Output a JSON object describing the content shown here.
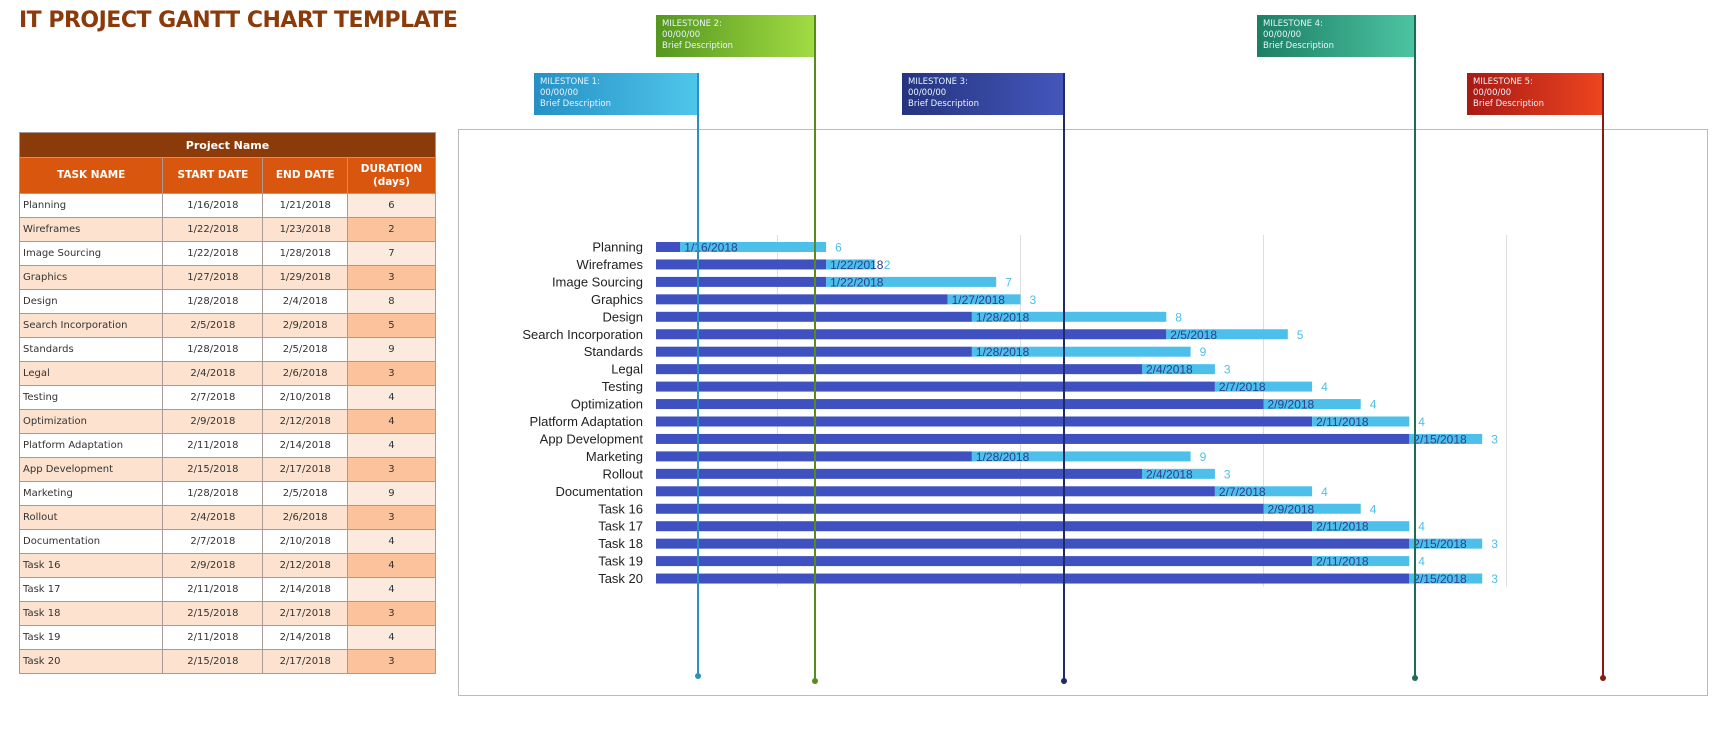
{
  "title": "IT PROJECT GANTT CHART TEMPLATE",
  "table": {
    "project_name": "Project Name",
    "headers": {
      "task": "TASK NAME",
      "start": "START DATE",
      "end": "END DATE",
      "duration": "DURATION",
      "duration_unit": "(days)"
    },
    "rows": [
      {
        "task": "Planning",
        "start": "1/16/2018",
        "end": "1/21/2018",
        "duration": "6"
      },
      {
        "task": "Wireframes",
        "start": "1/22/2018",
        "end": "1/23/2018",
        "duration": "2"
      },
      {
        "task": "Image Sourcing",
        "start": "1/22/2018",
        "end": "1/28/2018",
        "duration": "7"
      },
      {
        "task": "Graphics",
        "start": "1/27/2018",
        "end": "1/29/2018",
        "duration": "3"
      },
      {
        "task": "Design",
        "start": "1/28/2018",
        "end": "2/4/2018",
        "duration": "8"
      },
      {
        "task": "Search Incorporation",
        "start": "2/5/2018",
        "end": "2/9/2018",
        "duration": "5"
      },
      {
        "task": "Standards",
        "start": "1/28/2018",
        "end": "2/5/2018",
        "duration": "9"
      },
      {
        "task": "Legal",
        "start": "2/4/2018",
        "end": "2/6/2018",
        "duration": "3"
      },
      {
        "task": "Testing",
        "start": "2/7/2018",
        "end": "2/10/2018",
        "duration": "4"
      },
      {
        "task": "Optimization",
        "start": "2/9/2018",
        "end": "2/12/2018",
        "duration": "4"
      },
      {
        "task": "Platform Adaptation",
        "start": "2/11/2018",
        "end": "2/14/2018",
        "duration": "4"
      },
      {
        "task": "App Development",
        "start": "2/15/2018",
        "end": "2/17/2018",
        "duration": "3"
      },
      {
        "task": "Marketing",
        "start": "1/28/2018",
        "end": "2/5/2018",
        "duration": "9"
      },
      {
        "task": "Rollout",
        "start": "2/4/2018",
        "end": "2/6/2018",
        "duration": "3"
      },
      {
        "task": "Documentation",
        "start": "2/7/2018",
        "end": "2/10/2018",
        "duration": "4"
      },
      {
        "task": "Task 16",
        "start": "2/9/2018",
        "end": "2/12/2018",
        "duration": "4"
      },
      {
        "task": "Task 17",
        "start": "2/11/2018",
        "end": "2/14/2018",
        "duration": "4"
      },
      {
        "task": "Task 18",
        "start": "2/15/2018",
        "end": "2/17/2018",
        "duration": "3"
      },
      {
        "task": "Task 19",
        "start": "2/11/2018",
        "end": "2/14/2018",
        "duration": "4"
      },
      {
        "task": "Task 20",
        "start": "2/15/2018",
        "end": "2/17/2018",
        "duration": "3"
      }
    ]
  },
  "milestones": [
    {
      "label": "MILESTONE 1:",
      "date": "00/00/00",
      "desc": "Brief Description",
      "color_from": "#2690c4",
      "color_to": "#4fc6ec",
      "line": "#2a8fc2"
    },
    {
      "label": "MILESTONE 2:",
      "date": "00/00/00",
      "desc": "Brief Description",
      "color_from": "#55961f",
      "color_to": "#a2dc44",
      "line": "#5a8a1e"
    },
    {
      "label": "MILESTONE 3:",
      "date": "00/00/00",
      "desc": "Brief Description",
      "color_from": "#25347f",
      "color_to": "#4456bb",
      "line": "#1f2a6b"
    },
    {
      "label": "MILESTONE 4:",
      "date": "00/00/00",
      "desc": "Brief Description",
      "color_from": "#1c7f64",
      "color_to": "#4cc4a2",
      "line": "#1e6b58"
    },
    {
      "label": "MILESTONE 5:",
      "date": "00/00/00",
      "desc": "Brief Description",
      "color_from": "#a81a14",
      "color_to": "#ec4520",
      "line": "#8a1a12"
    }
  ],
  "chart_data": {
    "type": "bar",
    "subtype": "stacked-horizontal-gantt",
    "axis_min": "1/15/2018",
    "gridlines": [
      "1/20/2018",
      "1/30/2018",
      "2/9/2018",
      "2/19/2018"
    ],
    "series": [
      {
        "name": "Start Date",
        "color": "#3f51c0",
        "role": "offset"
      },
      {
        "name": "Duration",
        "color": "#4cc0ea",
        "role": "duration"
      }
    ],
    "date_label_color": "#2c3d8f",
    "duration_label_color": "#4cc0ea"
  }
}
